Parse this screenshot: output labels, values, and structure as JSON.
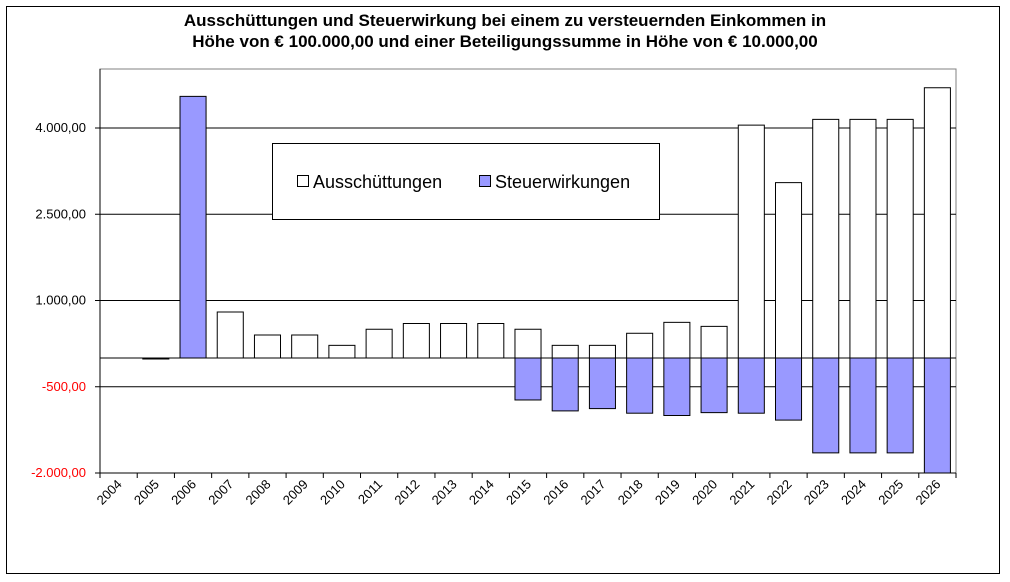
{
  "chart_data": {
    "type": "bar",
    "title": [
      "Ausschüttungen und Steuerwirkung bei einem zu versteuernden Einkommen in",
      "Höhe von € 100.000,00 und einer Beteiligungssumme in Höhe von € 10.000,00"
    ],
    "categories": [
      "2004",
      "2005",
      "2006",
      "2007",
      "2008",
      "2009",
      "2010",
      "2011",
      "2012",
      "2013",
      "2014",
      "2015",
      "2016",
      "2017",
      "2018",
      "2019",
      "2020",
      "2021",
      "2022",
      "2023",
      "2024",
      "2025",
      "2026"
    ],
    "series": [
      {
        "name": "Ausschüttungen",
        "color": "#ffffff",
        "values": [
          0,
          0,
          0,
          800,
          400,
          400,
          220,
          500,
          600,
          600,
          600,
          500,
          220,
          220,
          430,
          620,
          550,
          4050,
          3050,
          4150,
          4150,
          4150,
          4700
        ]
      },
      {
        "name": "Steuerwirkungen",
        "color": "#9999ff",
        "values": [
          0,
          -15,
          4550,
          0,
          0,
          0,
          0,
          0,
          0,
          0,
          0,
          -730,
          -920,
          -880,
          -960,
          -1000,
          -950,
          -960,
          -1080,
          -1650,
          -1650,
          -1650,
          -2000
        ]
      }
    ],
    "ylim": [
      -2000,
      5000
    ],
    "yticks": [
      -2000,
      -500,
      1000,
      2500,
      4000
    ],
    "ytick_labels": [
      "-2.000,00",
      "-500,00",
      "1.000,00",
      "2.500,00",
      "4.000,00"
    ],
    "negative_tick_color": "#ff0000",
    "grid": true,
    "legend_position": "top-center",
    "xlabel": "",
    "ylabel": ""
  }
}
